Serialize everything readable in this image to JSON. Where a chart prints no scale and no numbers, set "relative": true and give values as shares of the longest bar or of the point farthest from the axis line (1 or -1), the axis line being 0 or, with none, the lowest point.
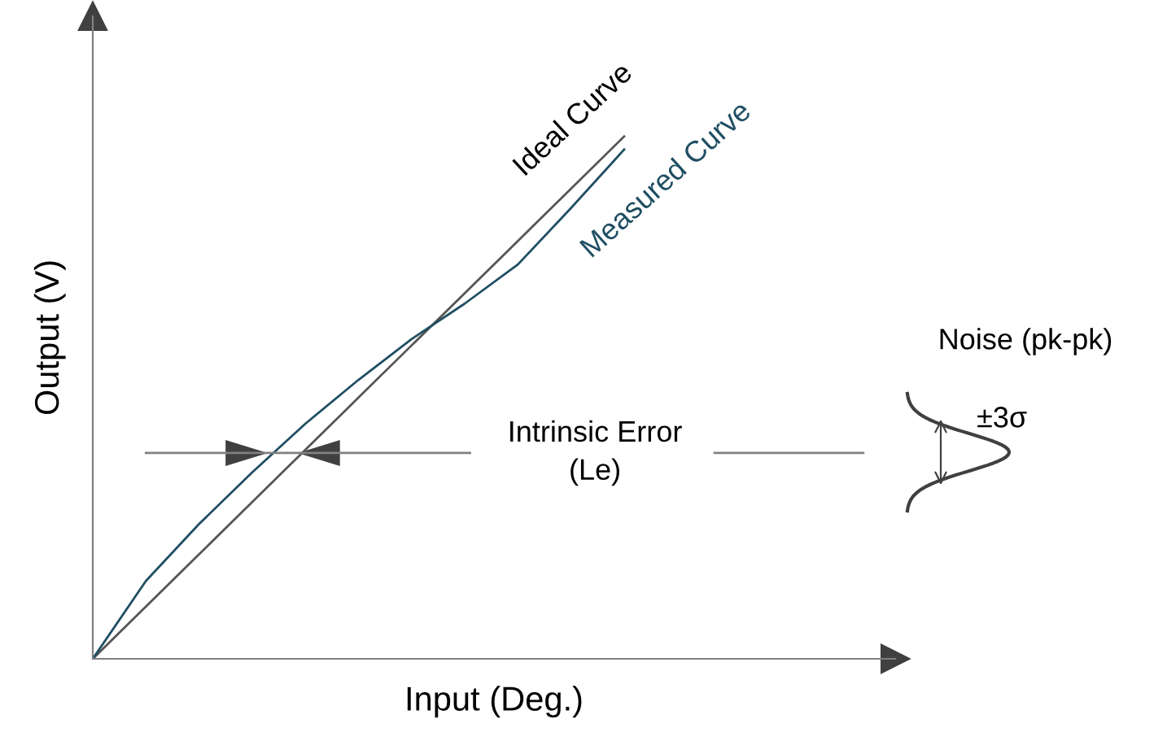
{
  "chart_data": {
    "type": "line",
    "relative": true,
    "xlabel": "Input (Deg.)",
    "ylabel": "Output (V)",
    "categories": [
      null,
      null,
      null,
      null,
      null,
      null,
      null,
      null,
      null,
      null,
      null
    ],
    "series": [
      {
        "name": "Ideal Curve",
        "color": "#555555",
        "values": [
          0,
          0.1,
          0.2,
          0.3,
          0.4,
          0.5,
          0.6,
          0.7,
          0.8,
          0.9,
          1
        ]
      },
      {
        "name": "Measured Curve",
        "color": "#1f4e63",
        "values": [
          0,
          0.149,
          0.258,
          0.357,
          0.45,
          0.534,
          0.612,
          0.68,
          0.755,
          0.863,
          0.975
        ]
      }
    ],
    "ref_lines": [
      {
        "axis": "y",
        "value": 0.394,
        "label": "Intrinsic Error\n(Le)",
        "color": "#808080"
      }
    ],
    "annotations": [
      "Noise (pk-pk)",
      "±3σ"
    ],
    "legend": false,
    "marker": "none",
    "line_style": "solid"
  }
}
